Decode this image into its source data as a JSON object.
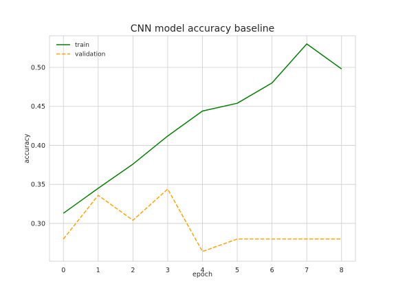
{
  "chart_data": {
    "type": "line",
    "title": "CNN model accuracy baseline",
    "xlabel": "epoch",
    "ylabel": "accuracy",
    "x": [
      0,
      1,
      2,
      3,
      4,
      5,
      6,
      7,
      8
    ],
    "xticks": [
      0,
      1,
      2,
      3,
      4,
      5,
      6,
      7,
      8
    ],
    "yticks": [
      0.3,
      0.35,
      0.4,
      0.45,
      0.5
    ],
    "xlim": [
      -0.4,
      8.4
    ],
    "ylim": [
      0.2515,
      0.5405
    ],
    "grid": true,
    "legend_position": "top-left",
    "series": [
      {
        "name": "train",
        "color": "#008000",
        "style": "solid",
        "values": [
          0.313,
          0.345,
          0.376,
          0.412,
          0.444,
          0.454,
          0.48,
          0.53,
          0.498
        ]
      },
      {
        "name": "validation",
        "color": "#FFA500",
        "style": "dashed",
        "values": [
          0.28,
          0.336,
          0.304,
          0.344,
          0.264,
          0.28,
          0.28,
          0.28,
          0.28
        ]
      }
    ]
  }
}
